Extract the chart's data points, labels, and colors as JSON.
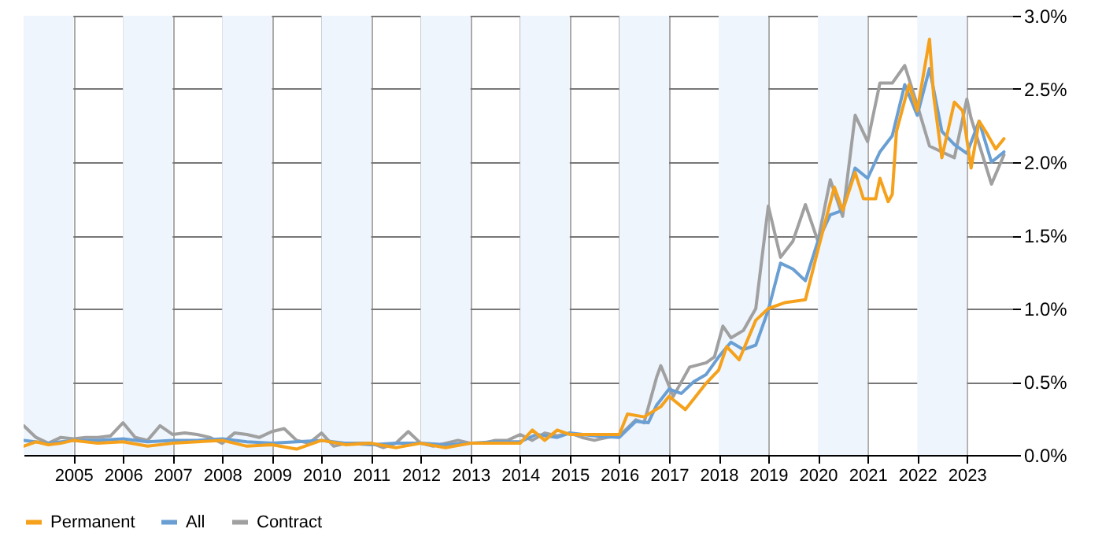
{
  "chart_data": {
    "type": "line",
    "xlim": [
      "2004-01",
      "2023-12"
    ],
    "xticks": [
      "2005",
      "2006",
      "2007",
      "2008",
      "2009",
      "2010",
      "2011",
      "2012",
      "2013",
      "2014",
      "2015",
      "2016",
      "2017",
      "2018",
      "2019",
      "2020",
      "2021",
      "2022",
      "2023"
    ],
    "ylim": [
      0,
      3
    ],
    "yticks": [
      {
        "value": 0,
        "label": "0.0%"
      },
      {
        "value": 0.5,
        "label": "0.5%"
      },
      {
        "value": 1,
        "label": "1.0%"
      },
      {
        "value": 1.5,
        "label": "1.5%"
      },
      {
        "value": 2,
        "label": "2.0%"
      },
      {
        "value": 2.5,
        "label": "2.5%"
      },
      {
        "value": 3,
        "label": "3.0%"
      }
    ],
    "grid": true,
    "legend": "bottom",
    "marker": "none",
    "line_style": "solid",
    "bands": [
      {
        "axis": "x",
        "from": "2004-01",
        "to": "2005-01",
        "color": "#eef5fd"
      },
      {
        "axis": "x",
        "from": "2006-01",
        "to": "2007-01",
        "color": "#eef5fd"
      },
      {
        "axis": "x",
        "from": "2008-01",
        "to": "2009-01",
        "color": "#eef5fd"
      },
      {
        "axis": "x",
        "from": "2010-01",
        "to": "2011-01",
        "color": "#eef5fd"
      },
      {
        "axis": "x",
        "from": "2012-01",
        "to": "2013-01",
        "color": "#eef5fd"
      },
      {
        "axis": "x",
        "from": "2014-01",
        "to": "2015-01",
        "color": "#eef5fd"
      },
      {
        "axis": "x",
        "from": "2016-01",
        "to": "2017-01",
        "color": "#eef5fd"
      },
      {
        "axis": "x",
        "from": "2018-01",
        "to": "2019-01",
        "color": "#eef5fd"
      },
      {
        "axis": "x",
        "from": "2020-01",
        "to": "2021-01",
        "color": "#eef5fd"
      },
      {
        "axis": "x",
        "from": "2022-01",
        "to": "2023-01",
        "color": "#eef5fd"
      }
    ],
    "series": [
      {
        "name": "Contract",
        "color": "#a0a0a0",
        "x": [
          "2004-01",
          "2004-04",
          "2004-07",
          "2004-10",
          "2005-01",
          "2005-04",
          "2005-07",
          "2005-10",
          "2006-01",
          "2006-04",
          "2006-07",
          "2006-10",
          "2007-01",
          "2007-04",
          "2007-07",
          "2007-10",
          "2008-01",
          "2008-04",
          "2008-07",
          "2008-10",
          "2009-01",
          "2009-04",
          "2009-07",
          "2009-10",
          "2010-01",
          "2010-04",
          "2010-07",
          "2010-10",
          "2011-01",
          "2011-04",
          "2011-07",
          "2011-10",
          "2012-01",
          "2012-04",
          "2012-07",
          "2012-10",
          "2013-01",
          "2013-04",
          "2013-07",
          "2013-10",
          "2014-01",
          "2014-04",
          "2014-07",
          "2014-10",
          "2015-01",
          "2015-04",
          "2015-07",
          "2015-10",
          "2016-01",
          "2016-05",
          "2016-07",
          "2016-10",
          "2016-11",
          "2017-02",
          "2017-06",
          "2017-10",
          "2017-12",
          "2018-02",
          "2018-04",
          "2018-07",
          "2018-10",
          "2019-01",
          "2019-04",
          "2019-07",
          "2019-10",
          "2020-01",
          "2020-04",
          "2020-07",
          "2020-10",
          "2021-01",
          "2021-04",
          "2021-07",
          "2021-10",
          "2022-01",
          "2022-04",
          "2022-07",
          "2022-10",
          "2023-01",
          "2023-02",
          "2023-07",
          "2023-10"
        ],
        "values": [
          0.2,
          0.12,
          0.08,
          0.12,
          0.11,
          0.12,
          0.12,
          0.13,
          0.22,
          0.12,
          0.1,
          0.2,
          0.14,
          0.15,
          0.14,
          0.12,
          0.08,
          0.15,
          0.14,
          0.12,
          0.16,
          0.18,
          0.1,
          0.08,
          0.15,
          0.06,
          0.08,
          0.08,
          0.08,
          0.05,
          0.08,
          0.16,
          0.08,
          0.06,
          0.08,
          0.1,
          0.08,
          0.08,
          0.1,
          0.1,
          0.14,
          0.1,
          0.15,
          0.13,
          0.15,
          0.12,
          0.1,
          0.12,
          0.13,
          0.24,
          0.22,
          0.53,
          0.61,
          0.4,
          0.6,
          0.63,
          0.67,
          0.88,
          0.8,
          0.85,
          1.0,
          1.7,
          1.35,
          1.46,
          1.71,
          1.46,
          1.88,
          1.63,
          2.32,
          2.14,
          2.54,
          2.54,
          2.66,
          2.39,
          2.11,
          2.07,
          2.03,
          2.43,
          2.3,
          1.85,
          2.05
        ]
      },
      {
        "name": "All",
        "color": "#6a9fd4",
        "x": [
          "2004-01",
          "2004-07",
          "2005-01",
          "2005-07",
          "2006-01",
          "2006-07",
          "2007-01",
          "2007-07",
          "2008-01",
          "2008-07",
          "2009-01",
          "2009-07",
          "2010-01",
          "2010-07",
          "2011-01",
          "2011-07",
          "2012-01",
          "2012-07",
          "2013-01",
          "2013-07",
          "2014-01",
          "2014-05",
          "2014-10",
          "2015-01",
          "2015-07",
          "2016-01",
          "2016-05",
          "2016-08",
          "2016-10",
          "2017-01",
          "2017-04",
          "2017-07",
          "2017-10",
          "2018-01",
          "2018-04",
          "2018-07",
          "2018-10",
          "2019-01",
          "2019-04",
          "2019-07",
          "2019-10",
          "2020-01",
          "2020-04",
          "2020-07",
          "2020-10",
          "2021-01",
          "2021-04",
          "2021-07",
          "2021-10",
          "2022-01",
          "2022-04",
          "2022-07",
          "2022-10",
          "2023-01",
          "2023-04",
          "2023-07",
          "2023-10"
        ],
        "values": [
          0.1,
          0.08,
          0.1,
          0.1,
          0.11,
          0.09,
          0.1,
          0.1,
          0.11,
          0.09,
          0.08,
          0.09,
          0.1,
          0.08,
          0.07,
          0.08,
          0.08,
          0.07,
          0.08,
          0.09,
          0.09,
          0.14,
          0.12,
          0.15,
          0.13,
          0.12,
          0.23,
          0.22,
          0.34,
          0.45,
          0.42,
          0.5,
          0.55,
          0.67,
          0.77,
          0.72,
          0.75,
          0.99,
          1.31,
          1.27,
          1.19,
          1.46,
          1.64,
          1.67,
          1.96,
          1.89,
          2.07,
          2.18,
          2.53,
          2.32,
          2.64,
          2.21,
          2.12,
          2.06,
          2.28,
          2.0,
          2.07
        ]
      },
      {
        "name": "Permanent",
        "color": "#f5a11c",
        "x": [
          "2004-01",
          "2004-04",
          "2004-07",
          "2004-10",
          "2005-01",
          "2005-07",
          "2006-01",
          "2006-07",
          "2007-01",
          "2007-07",
          "2008-01",
          "2008-07",
          "2009-01",
          "2009-07",
          "2010-01",
          "2010-07",
          "2011-01",
          "2011-07",
          "2012-01",
          "2012-07",
          "2013-01",
          "2013-07",
          "2014-01",
          "2014-04",
          "2014-07",
          "2014-10",
          "2015-01",
          "2015-07",
          "2016-01",
          "2016-03",
          "2016-07",
          "2016-11",
          "2017-01",
          "2017-05",
          "2017-10",
          "2018-01",
          "2018-03",
          "2018-06",
          "2018-10",
          "2019-01",
          "2019-05",
          "2019-10",
          "2020-01",
          "2020-05",
          "2020-07",
          "2020-10",
          "2020-12",
          "2021-03",
          "2021-04",
          "2021-06",
          "2021-07",
          "2021-08",
          "2021-11",
          "2022-01",
          "2022-04",
          "2022-05",
          "2022-07",
          "2022-10",
          "2022-12",
          "2023-02",
          "2023-04",
          "2023-06",
          "2023-08",
          "2023-10"
        ],
        "values": [
          0.06,
          0.09,
          0.07,
          0.08,
          0.1,
          0.08,
          0.09,
          0.06,
          0.08,
          0.09,
          0.1,
          0.06,
          0.07,
          0.04,
          0.1,
          0.07,
          0.08,
          0.05,
          0.08,
          0.05,
          0.08,
          0.08,
          0.08,
          0.17,
          0.1,
          0.17,
          0.14,
          0.14,
          0.14,
          0.28,
          0.26,
          0.33,
          0.4,
          0.31,
          0.49,
          0.58,
          0.74,
          0.65,
          0.92,
          1.0,
          1.04,
          1.06,
          1.4,
          1.83,
          1.67,
          1.93,
          1.75,
          1.75,
          1.89,
          1.73,
          1.78,
          2.21,
          2.53,
          2.35,
          2.84,
          2.46,
          2.03,
          2.41,
          2.35,
          1.96,
          2.28,
          2.19,
          2.09,
          2.16
        ]
      }
    ]
  }
}
